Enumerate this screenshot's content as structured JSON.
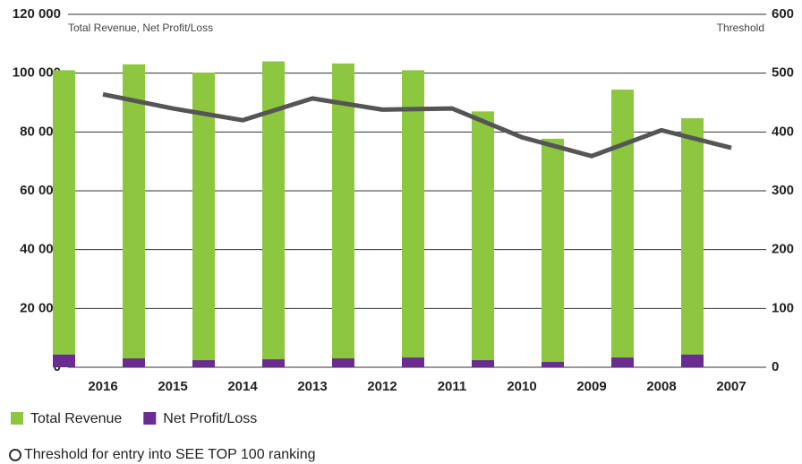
{
  "chart_data": {
    "type": "bar",
    "y_label": "Total Revenue, Net Profit/Loss",
    "y2_label": "Threshold",
    "categories": [
      "2016",
      "2015",
      "2014",
      "2013",
      "2012",
      "2011",
      "2010",
      "2009",
      "2008",
      "2007"
    ],
    "series": [
      {
        "name": "Total Revenue",
        "color": "#8dc63f",
        "values": [
          101000,
          103000,
          100200,
          104000,
          103300,
          101000,
          87000,
          77700,
          94400,
          84700
        ]
      },
      {
        "name": "Net Profit/Loss",
        "color": "#6a2c91",
        "values": [
          4300,
          3000,
          2400,
          2700,
          3000,
          3300,
          2400,
          1800,
          3300,
          4300
        ]
      },
      {
        "name": "Threshold for entry into SEE TOP 100 ranking",
        "color": "#555555",
        "type": "line",
        "axis": "y2",
        "values": [
          464,
          440,
          420,
          457,
          438,
          440,
          391,
          359,
          403,
          373
        ]
      }
    ],
    "ylim": [
      0,
      120000
    ],
    "yticks": [
      {
        "value": 0,
        "label": "0"
      },
      {
        "value": 20000,
        "label": "20 000"
      },
      {
        "value": 40000,
        "label": "40 000"
      },
      {
        "value": 60000,
        "label": "60 000"
      },
      {
        "value": 80000,
        "label": "80 000"
      },
      {
        "value": 100000,
        "label": "100 000"
      },
      {
        "value": 120000,
        "label": "120 000"
      }
    ],
    "y2lim": [
      0,
      600
    ],
    "y2ticks": [
      0,
      100,
      200,
      300,
      400,
      500,
      600
    ],
    "grid": true
  }
}
